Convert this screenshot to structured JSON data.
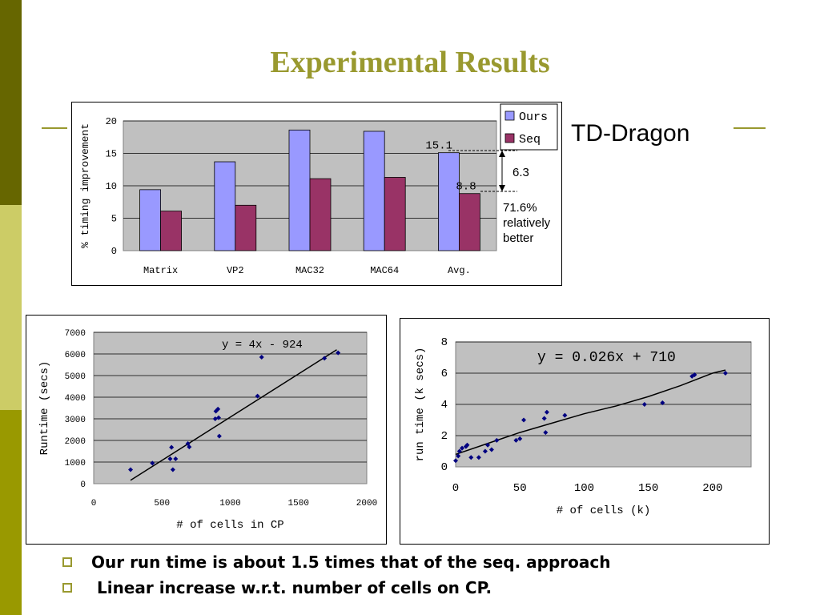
{
  "slide": {
    "title": "Experimental Results",
    "side_label": "TD-Dragon",
    "colors": {
      "title": "#99992f",
      "sidebar_dark": "#666600",
      "sidebar_light": "#cccc66",
      "sidebar_mid": "#999900",
      "rule": "#99992f",
      "bullet": "#99992f"
    },
    "annotations": {
      "diff": "6.3",
      "improvement": "71.6%",
      "relatively": "relatively",
      "better": "better"
    },
    "bullets": [
      "Our run time is about 1.5 times that of the seq. approach",
      " Linear increase w.r.t. number of cells on CP."
    ]
  },
  "chart_data": [
    {
      "type": "bar",
      "ylabel": "% timing improvement",
      "xlabel": "",
      "ylim": [
        0,
        20
      ],
      "yticks": [
        0,
        5,
        10,
        15,
        20
      ],
      "categories": [
        "Matrix",
        "VP2",
        "MAC32",
        "MAC64",
        "Avg."
      ],
      "series": [
        {
          "name": "Ours",
          "color": "#9999ff",
          "values": [
            9.4,
            13.7,
            18.6,
            18.4,
            15.1
          ]
        },
        {
          "name": "Seq",
          "color": "#993366",
          "values": [
            6.1,
            7.0,
            11.1,
            11.3,
            8.8
          ]
        }
      ],
      "data_labels": {
        "Avg.": [
          "15.1",
          "8.8"
        ]
      },
      "legend": "right",
      "grid": true
    },
    {
      "type": "scatter",
      "ylabel": "Runtime (secs)",
      "xlabel": "# of cells in CP",
      "xlim": [
        0,
        2000
      ],
      "ylim": [
        0,
        7000
      ],
      "xticks": [
        0,
        500,
        1000,
        1500,
        2000
      ],
      "yticks": [
        0,
        1000,
        2000,
        3000,
        4000,
        5000,
        6000,
        7000
      ],
      "points": [
        [
          270,
          650
        ],
        [
          430,
          950
        ],
        [
          560,
          1150
        ],
        [
          570,
          1680
        ],
        [
          580,
          650
        ],
        [
          600,
          1150
        ],
        [
          690,
          1850
        ],
        [
          700,
          1700
        ],
        [
          890,
          3000
        ],
        [
          895,
          3350
        ],
        [
          910,
          3450
        ],
        [
          915,
          3050
        ],
        [
          920,
          2200
        ],
        [
          1200,
          4050
        ],
        [
          1230,
          5850
        ],
        [
          1690,
          5800
        ],
        [
          1790,
          6050
        ]
      ],
      "trendline": {
        "label": "y = 4x - 924",
        "slope": 4,
        "intercept": -924,
        "x_range": [
          270,
          1780
        ]
      },
      "grid": true
    },
    {
      "type": "scatter",
      "ylabel": "run time (k secs)",
      "xlabel": "# of cells (k)",
      "xlim": [
        0,
        230
      ],
      "ylim": [
        0,
        8
      ],
      "xticks": [
        0,
        50,
        100,
        150,
        200
      ],
      "yticks": [
        0,
        2,
        4,
        6,
        8
      ],
      "points": [
        [
          0,
          0.4
        ],
        [
          2,
          0.7
        ],
        [
          3,
          1.0
        ],
        [
          5,
          1.2
        ],
        [
          8,
          1.3
        ],
        [
          9,
          1.4
        ],
        [
          12,
          0.6
        ],
        [
          18,
          0.6
        ],
        [
          23,
          1.0
        ],
        [
          25,
          1.4
        ],
        [
          28,
          1.1
        ],
        [
          32,
          1.7
        ],
        [
          47,
          1.7
        ],
        [
          50,
          1.8
        ],
        [
          53,
          3.0
        ],
        [
          69,
          3.1
        ],
        [
          70,
          2.2
        ],
        [
          71,
          3.5
        ],
        [
          85,
          3.3
        ],
        [
          147,
          4.0
        ],
        [
          161,
          4.1
        ],
        [
          184,
          5.8
        ],
        [
          186,
          5.9
        ],
        [
          210,
          6.0
        ]
      ],
      "trendline": {
        "label": "y = 0.026x + 710",
        "points": [
          [
            0,
            0.8
          ],
          [
            25,
            1.5
          ],
          [
            50,
            2.2
          ],
          [
            75,
            2.8
          ],
          [
            100,
            3.4
          ],
          [
            125,
            3.9
          ],
          [
            150,
            4.5
          ],
          [
            175,
            5.2
          ],
          [
            200,
            6.0
          ],
          [
            210,
            6.2
          ]
        ]
      },
      "grid": true
    }
  ]
}
